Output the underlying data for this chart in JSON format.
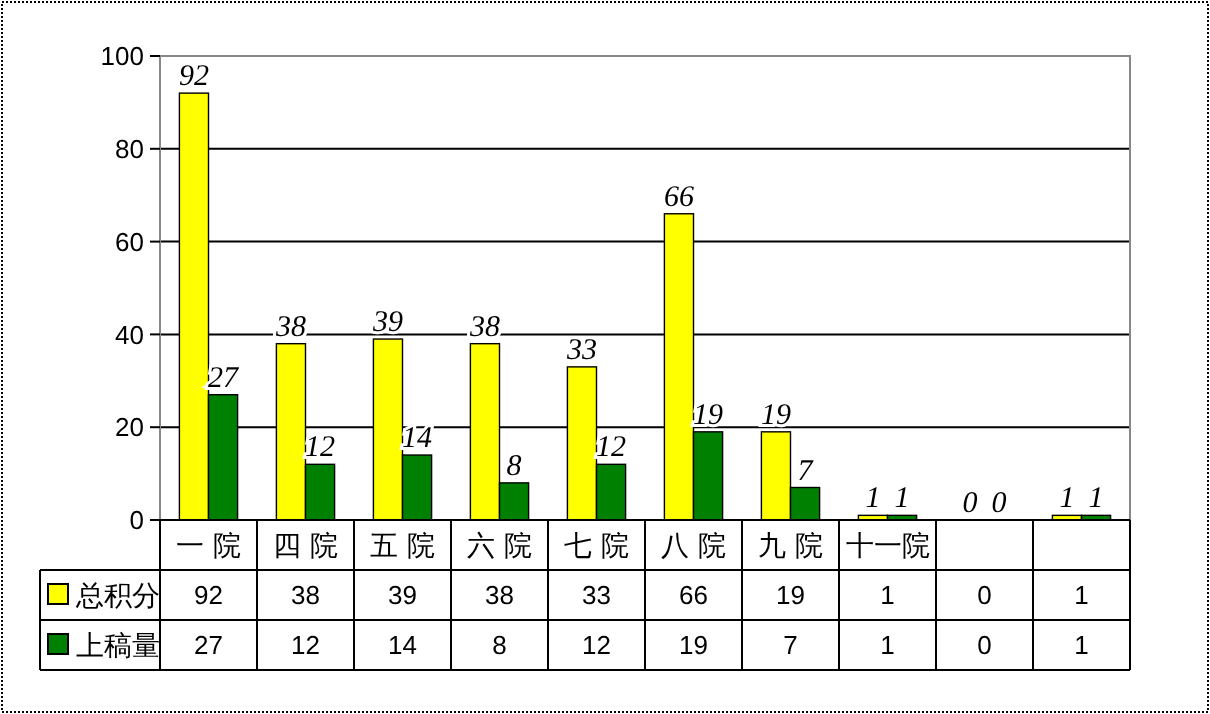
{
  "chart_data": {
    "type": "bar",
    "categories": [
      "一 院",
      "四 院",
      "五 院",
      "六 院",
      "七 院",
      "八 院",
      "九 院",
      "十一院",
      null,
      null
    ],
    "series": [
      {
        "name": "总积分",
        "color": "#ffff00",
        "values": [
          92,
          38,
          39,
          38,
          33,
          66,
          19,
          1,
          0,
          1
        ],
        "value_labels": [
          "92",
          "38",
          "39",
          "38",
          "33",
          "66",
          "19",
          "1",
          "0",
          "1"
        ]
      },
      {
        "name": "上稿量",
        "color": "#008000",
        "values": [
          27,
          12,
          14,
          8,
          12,
          19,
          7,
          1,
          0,
          1
        ],
        "value_labels": [
          "27",
          "12",
          "14",
          "8",
          "12",
          "19",
          "7",
          "1",
          "0",
          "1"
        ]
      }
    ],
    "annotations": [
      "92",
      "38",
      "39",
      "38",
      "33",
      "66",
      "19",
      "1",
      "0",
      "1",
      "27",
      "12",
      "14",
      "8",
      "12",
      "19",
      "7",
      "1",
      "0",
      "1"
    ],
    "ylim": [
      0,
      100
    ],
    "yticks": [
      0,
      20,
      40,
      60,
      80,
      100
    ],
    "grid": "y",
    "legend": "bottom"
  }
}
